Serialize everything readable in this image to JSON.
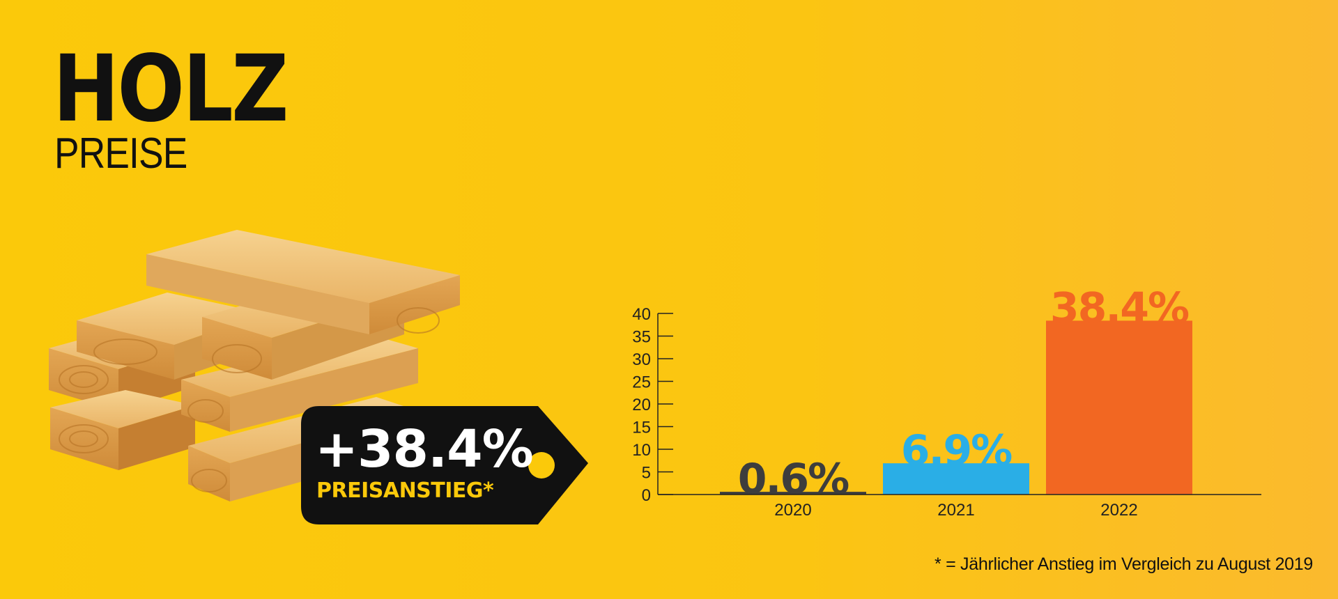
{
  "header": {
    "title": "HOLZ",
    "subtitle": "PREISE"
  },
  "price_tag": {
    "value": "+38.4%",
    "label": "PREISANSTIEG*"
  },
  "footnote": "* = Jährlicher Anstieg im Vergleich zu August 2019",
  "colors": {
    "background": "#fbc90a",
    "tag": "#111111",
    "tag_label": "#fbc90a"
  },
  "chart_data": {
    "type": "bar",
    "categories": [
      "2020",
      "2021",
      "2022"
    ],
    "values": [
      0.6,
      6.9,
      38.4
    ],
    "value_labels": [
      "0.6%",
      "6.9%",
      "38.4%"
    ],
    "colors": [
      "#3d3d3d",
      "#2aaee6",
      "#f26722"
    ],
    "y_ticks": [
      "0",
      "5",
      "10",
      "15",
      "20",
      "25",
      "30",
      "35",
      "40"
    ],
    "ylim": [
      0,
      40
    ]
  }
}
